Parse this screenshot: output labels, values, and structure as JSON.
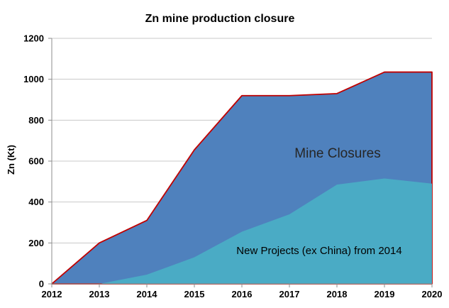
{
  "chart_data": {
    "type": "area",
    "title": "Zn mine production closure",
    "ylabel": "Zn (Kt)",
    "xlabel": "",
    "x": [
      "2012",
      "2013",
      "2014",
      "2015",
      "2016",
      "2017",
      "2018",
      "2019",
      "2020"
    ],
    "ylim": [
      0,
      1200
    ],
    "y_ticks": [
      0,
      200,
      400,
      600,
      800,
      1000,
      1200
    ],
    "grid": "horizontal",
    "legend_position": "none (series labeled by text inside plot)",
    "series": [
      {
        "name": "Mine Closures",
        "values": [
          0,
          200,
          310,
          655,
          920,
          920,
          930,
          1035,
          1035
        ],
        "values_meaning": "top boundary in Kt (red-edged blue area)",
        "fill": "#4f81bd",
        "edge": "#c00000"
      },
      {
        "name": "New Projects (ex China) from 2014",
        "values": [
          0,
          0,
          45,
          130,
          255,
          340,
          485,
          515,
          490
        ],
        "values_meaning": "top boundary in Kt (teal area overlapping bottom of blue area)",
        "fill": "#4aabc5",
        "edge": "none"
      }
    ]
  },
  "colors": {
    "background": "#ffffff",
    "gridline": "#c8c8c8",
    "axis": "#8c8c8c",
    "text": "#000000",
    "mine_closures_fill": "#4f81bd",
    "mine_closures_edge": "#c00000",
    "new_projects_fill": "#4aabc5"
  }
}
